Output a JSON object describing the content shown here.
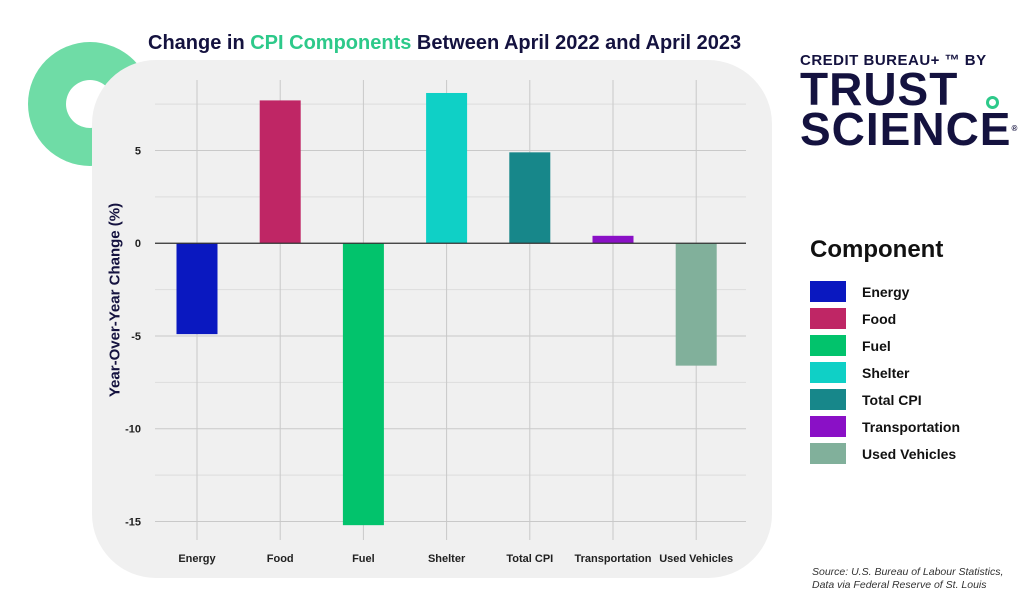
{
  "title": {
    "part1": "Change in ",
    "highlight": "CPI Components",
    "part2": " Between April 2022 and April 2023"
  },
  "brand": {
    "top": "CREDIT BUREAU+ ™ BY",
    "line1": "TRUST",
    "line2": "SCIENCE",
    "reg": "®"
  },
  "legend": {
    "title": "Component"
  },
  "source": {
    "line1": "Source: U.S. Bureau of Labour Statistics,",
    "line2": "Data via Federal Reserve of St. Louis"
  },
  "colors": {
    "title": "#14123f",
    "accent": "#2dc98a",
    "panel": "#f0f0f0"
  },
  "chart_data": {
    "type": "bar",
    "title": "Change in CPI Components Between April 2022 and April 2023",
    "xlabel": "",
    "ylabel": "Year-Over-Year Change (%)",
    "categories": [
      "Energy",
      "Food",
      "Fuel",
      "Shelter",
      "Total CPI",
      "Transportation",
      "Used Vehicles"
    ],
    "values": [
      -4.9,
      7.7,
      -15.2,
      8.1,
      4.9,
      0.4,
      -6.6
    ],
    "colors": [
      "#0a18c0",
      "#bf2665",
      "#02c36c",
      "#0fd0c6",
      "#17878a",
      "#8a10c6",
      "#81b09b"
    ],
    "yticks": [
      5,
      0,
      -5,
      -10,
      -15
    ],
    "ytick_labels": [
      "5",
      "0",
      "-5",
      "-10",
      "-15"
    ],
    "ylim": [
      -16.0,
      8.8
    ],
    "grid": true,
    "legend_position": "right"
  }
}
